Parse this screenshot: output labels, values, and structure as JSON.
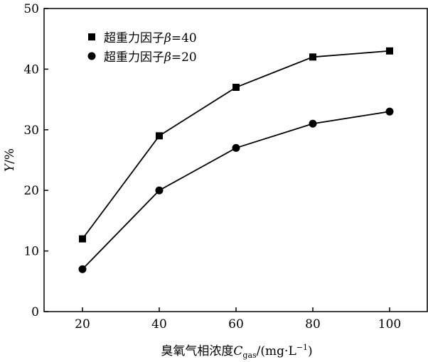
{
  "chart_data": {
    "type": "line",
    "x": [
      20,
      40,
      60,
      80,
      100
    ],
    "series": [
      {
        "name_prefix": "超重力因子",
        "name_symbol": "β",
        "name_suffix": "=40",
        "marker": "square",
        "values": [
          12,
          29,
          37,
          42,
          43
        ]
      },
      {
        "name_prefix": "超重力因子",
        "name_symbol": "β",
        "name_suffix": "=20",
        "marker": "circle",
        "values": [
          7,
          20,
          27,
          31,
          33
        ]
      }
    ],
    "xlabel": {
      "prefix": "臭氧气相浓度",
      "symbol": "C",
      "subscript": "gas",
      "unit": "/(mg·L",
      "superscript": "−1",
      "close": ")"
    },
    "ylabel": {
      "symbol": "Y",
      "unit": "/%"
    },
    "xticks": [
      20,
      40,
      60,
      80,
      100
    ],
    "yticks": [
      0,
      10,
      20,
      30,
      40,
      50
    ],
    "xlim": [
      10,
      110
    ],
    "ylim": [
      0,
      50
    ],
    "grid": false,
    "legend_position": "top-left",
    "line_color": "#000000"
  }
}
